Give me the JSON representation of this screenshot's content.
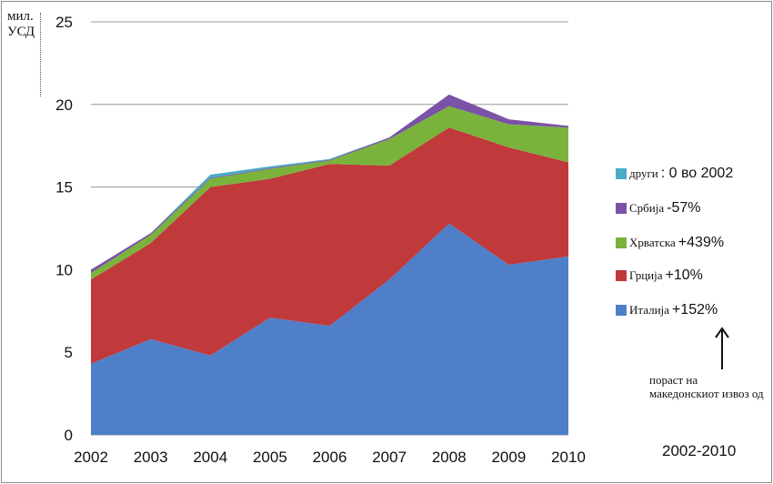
{
  "chart_data": {
    "type": "area",
    "stacked": true,
    "x": [
      "2002",
      "2003",
      "2004",
      "2005",
      "2006",
      "2007",
      "2008",
      "2009",
      "2010"
    ],
    "ylim": [
      0,
      25
    ],
    "yticks": [
      0,
      5,
      10,
      15,
      20,
      25
    ],
    "ylabel": "мил. УСД",
    "grid": true,
    "legend_position": "right",
    "series": [
      {
        "name": "Италија",
        "change": "+152%",
        "color": "#4f7fc8",
        "values": [
          4.3,
          5.8,
          4.8,
          7.1,
          6.6,
          9.4,
          12.8,
          10.3,
          10.8
        ]
      },
      {
        "name": "Грција",
        "change": "+10%",
        "color": "#c0393b",
        "values": [
          5.1,
          5.8,
          10.2,
          8.4,
          9.8,
          6.9,
          5.8,
          7.1,
          5.7
        ]
      },
      {
        "name": "Хрватска",
        "change": "+439%",
        "color": "#79b33c",
        "values": [
          0.4,
          0.5,
          0.5,
          0.6,
          0.2,
          1.6,
          1.3,
          1.4,
          2.1
        ]
      },
      {
        "name": "Србија",
        "change": "-57%",
        "color": "#7a52a6",
        "values": [
          0.2,
          0.1,
          0.05,
          0.05,
          0.05,
          0.1,
          0.7,
          0.3,
          0.1
        ]
      },
      {
        "name": "други",
        "change": ": 0 во 2002",
        "color": "#4aabc6",
        "values": [
          0.0,
          0.0,
          0.2,
          0.1,
          0.05,
          0.0,
          0.0,
          0.0,
          0.0
        ]
      }
    ]
  },
  "note": "пораст на македонскиот извоз од",
  "period": "2002-2010"
}
